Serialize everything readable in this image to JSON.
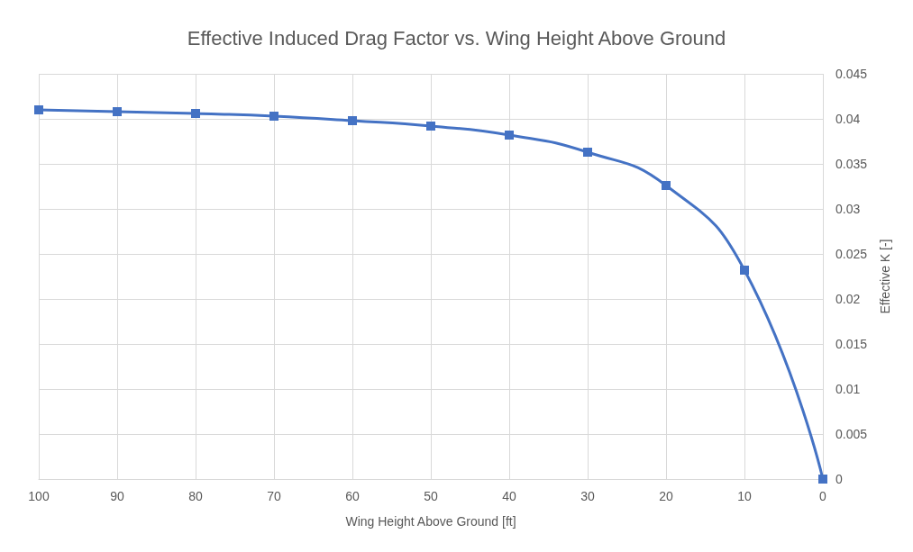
{
  "chart_data": {
    "type": "line",
    "title": "Effective Induced Drag Factor vs. Wing Height Above Ground",
    "xlabel": "Wing Height Above Ground [ft]",
    "ylabel": "Effective K [-]",
    "x": [
      100,
      90,
      80,
      70,
      60,
      50,
      40,
      30,
      20,
      10,
      0
    ],
    "series": [
      {
        "color": "#4472c4",
        "values": [
          0.041,
          0.0408,
          0.0406,
          0.0403,
          0.0398,
          0.0392,
          0.0382,
          0.0363,
          0.0326,
          0.0232,
          0
        ]
      }
    ],
    "xlim": [
      100,
      0
    ],
    "xticks": [
      100,
      90,
      80,
      70,
      60,
      50,
      40,
      30,
      20,
      10,
      0
    ],
    "ylim": [
      0,
      0.045
    ],
    "yticks": [
      0,
      0.005,
      0.01,
      0.015,
      0.02,
      0.025,
      0.03,
      0.035,
      0.04,
      0.045
    ],
    "grid": true,
    "marker": "square",
    "line_style": "solid"
  }
}
